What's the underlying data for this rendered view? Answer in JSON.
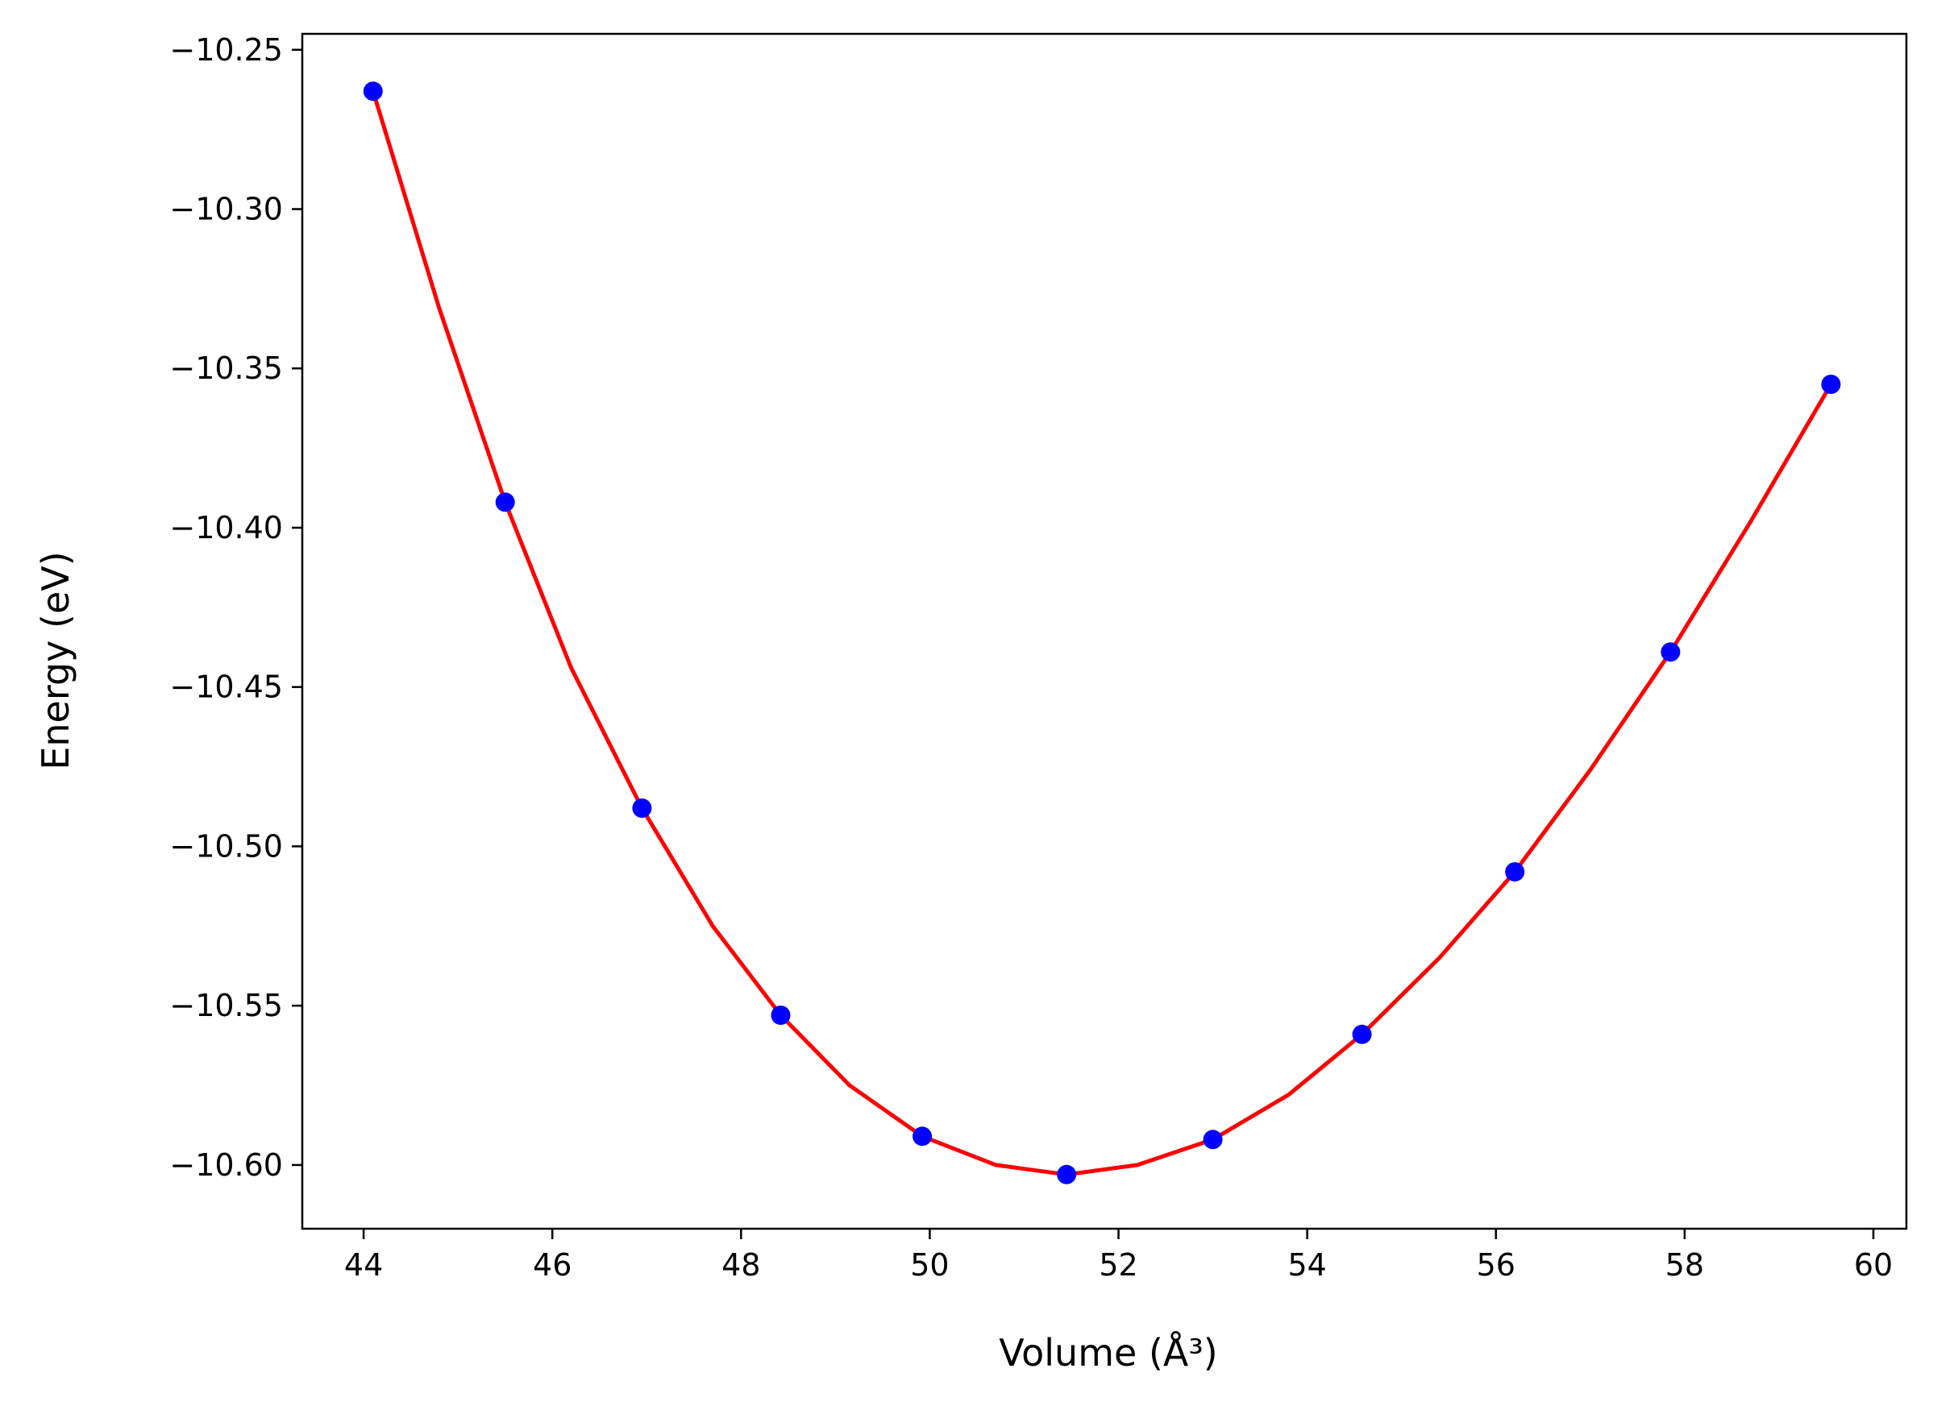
{
  "chart_data": {
    "type": "scatter",
    "title": "",
    "xlabel": "Volume (Å³)",
    "ylabel": "Energy (eV)",
    "xlim": [
      43.35,
      60.35
    ],
    "ylim": [
      -10.62,
      -10.245
    ],
    "xticks": [
      44,
      46,
      48,
      50,
      52,
      54,
      56,
      58,
      60
    ],
    "yticks": [
      -10.25,
      -10.3,
      -10.35,
      -10.4,
      -10.45,
      -10.5,
      -10.55,
      -10.6
    ],
    "grid": false,
    "legend": "none",
    "series": [
      {
        "kind": "points",
        "color": "#0000ff",
        "x": [
          44.1,
          45.5,
          46.95,
          48.42,
          49.92,
          51.45,
          53.0,
          54.58,
          56.2,
          57.85,
          59.55
        ],
        "y": [
          -10.263,
          -10.392,
          -10.488,
          -10.553,
          -10.591,
          -10.603,
          -10.592,
          -10.559,
          -10.508,
          -10.439,
          -10.355
        ]
      },
      {
        "kind": "fit-curve",
        "color": "#ff0000",
        "x": [
          44.1,
          44.8,
          45.5,
          46.2,
          46.95,
          47.7,
          48.42,
          49.15,
          49.92,
          50.7,
          51.45,
          52.2,
          53.0,
          53.8,
          54.58,
          55.4,
          56.2,
          57.0,
          57.85,
          58.7,
          59.55
        ],
        "y": [
          -10.263,
          -10.331,
          -10.392,
          -10.444,
          -10.488,
          -10.525,
          -10.553,
          -10.575,
          -10.591,
          -10.6,
          -10.603,
          -10.6,
          -10.592,
          -10.578,
          -10.559,
          -10.535,
          -10.508,
          -10.476,
          -10.439,
          -10.398,
          -10.355
        ]
      }
    ]
  }
}
